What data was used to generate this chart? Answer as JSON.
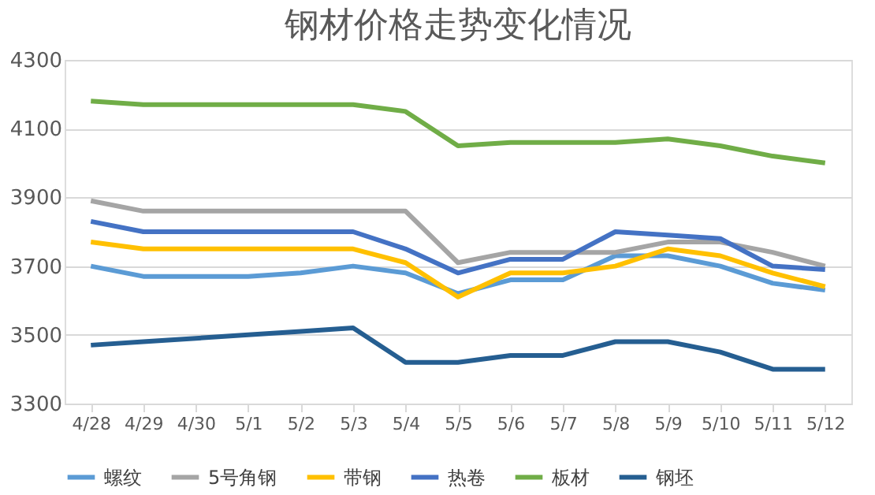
{
  "chart_data": {
    "type": "line",
    "title": "钢材价格走势变化情况",
    "categories": [
      "4/28",
      "4/29",
      "4/30",
      "5/1",
      "5/2",
      "5/3",
      "5/4",
      "5/5",
      "5/6",
      "5/7",
      "5/8",
      "5/9",
      "5/10",
      "5/11",
      "5/12"
    ],
    "series": [
      {
        "name": "螺纹",
        "color": "#5b9bd5",
        "values": [
          3700,
          3670,
          3670,
          3670,
          3680,
          3700,
          3680,
          3620,
          3660,
          3660,
          3730,
          3730,
          3700,
          3650,
          3630
        ]
      },
      {
        "name": "5号角钢",
        "color": "#a5a5a5",
        "values": [
          3890,
          3860,
          3860,
          3860,
          3860,
          3860,
          3860,
          3710,
          3740,
          3740,
          3740,
          3770,
          3770,
          3740,
          3700
        ]
      },
      {
        "name": "带钢",
        "color": "#ffc000",
        "values": [
          3770,
          3750,
          3750,
          3750,
          3750,
          3750,
          3710,
          3610,
          3680,
          3680,
          3700,
          3750,
          3730,
          3680,
          3640
        ]
      },
      {
        "name": "热卷",
        "color": "#4472c4",
        "values": [
          3830,
          3800,
          3800,
          3800,
          3800,
          3800,
          3750,
          3680,
          3720,
          3720,
          3800,
          3790,
          3780,
          3700,
          3690
        ]
      },
      {
        "name": "板材",
        "color": "#70ad47",
        "values": [
          4180,
          4170,
          4170,
          4170,
          4170,
          4170,
          4150,
          4050,
          4060,
          4060,
          4060,
          4070,
          4050,
          4020,
          4000
        ]
      },
      {
        "name": "钢坯",
        "color": "#255e91",
        "values": [
          3470,
          3480,
          3490,
          3500,
          3510,
          3520,
          3420,
          3420,
          3440,
          3440,
          3480,
          3480,
          3450,
          3400,
          3400
        ]
      }
    ],
    "ylim": [
      3300,
      4300
    ],
    "yticks": [
      3300,
      3500,
      3700,
      3900,
      4100,
      4300
    ],
    "grid": "y",
    "legend": "bottom",
    "marker": "none",
    "line_style": "solid"
  }
}
